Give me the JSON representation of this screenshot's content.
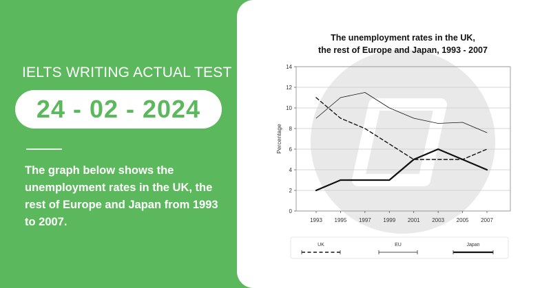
{
  "left": {
    "heading": "IELTS WRITING ACTUAL TEST",
    "date": "24 - 02 - 2024",
    "description": "The graph below shows the unemployment rates in the UK, the rest of Europe and Japan from 1993 to 2007."
  },
  "chart_data": {
    "type": "line",
    "title": [
      "The unemployment rates in the UK,",
      "the rest of Europe and Japan, 1993 - 2007"
    ],
    "xlabel": "",
    "ylabel": "Percentage",
    "x": [
      "1993",
      "1995",
      "1997",
      "1999",
      "2001",
      "2003",
      "2005",
      "2007"
    ],
    "ylim": [
      0,
      14
    ],
    "yticks": [
      "0",
      "2",
      "4",
      "6",
      "8",
      "10",
      "12",
      "14"
    ],
    "grid": true,
    "legend_position": "bottom",
    "series": [
      {
        "name": "UK",
        "style": "dashed",
        "values": [
          11,
          9,
          8,
          6.5,
          5,
          5,
          5,
          6
        ]
      },
      {
        "name": "EU",
        "style": "thin",
        "values": [
          9,
          11,
          11.5,
          10,
          9,
          8.5,
          8.6,
          7.6
        ]
      },
      {
        "name": "Japan",
        "style": "thick",
        "values": [
          2,
          3,
          3,
          3,
          5,
          6,
          5,
          4
        ]
      }
    ]
  },
  "colors": {
    "brand_green": "#5cb85c",
    "panel": "#ffffff",
    "line": "#111111",
    "watermark": "#e9e9e9"
  }
}
